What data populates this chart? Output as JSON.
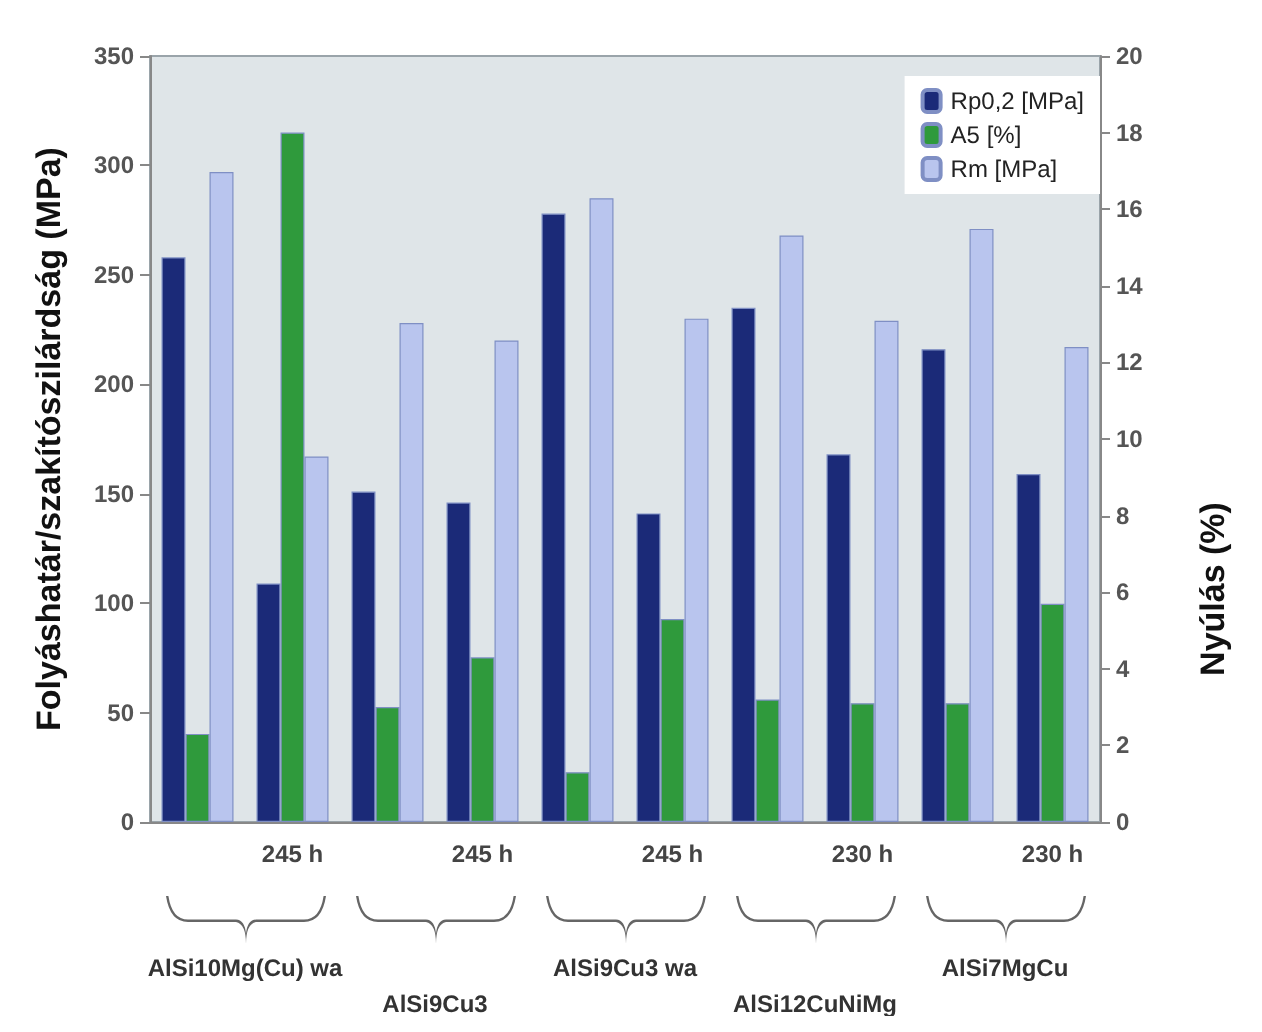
{
  "chart_data": {
    "type": "bar",
    "ylabel": "Folyáshatár/szakítószilárdság (MPa)",
    "y2label": "Nyúlás (%)",
    "categories": [
      null,
      "245 h",
      null,
      "245 h",
      null,
      "245 h",
      null,
      "230 h",
      null,
      "230 h"
    ],
    "series": [
      {
        "name": "Rp0,2 [MPa]",
        "color": "#1b2a78",
        "values": [
          258,
          109,
          151,
          146,
          278,
          141,
          235,
          168,
          216,
          159
        ]
      },
      {
        "name": "A5 [%]",
        "color": "#2f9a3c",
        "axis": "y2",
        "values": [
          2.3,
          18.0,
          3.0,
          4.3,
          1.3,
          5.3,
          3.2,
          3.1,
          3.1,
          5.7
        ]
      },
      {
        "name": "Rm [MPa]",
        "color": "#b9c5ee",
        "values": [
          297,
          167,
          228,
          220,
          285,
          230,
          268,
          229,
          271,
          217
        ]
      }
    ],
    "ylim": [
      0,
      350
    ],
    "yticks": [
      0,
      50,
      100,
      150,
      200,
      250,
      300,
      350
    ],
    "y2lim": [
      0,
      20
    ],
    "y2ticks": [
      0,
      2,
      4,
      6,
      8,
      10,
      12,
      14,
      16,
      18,
      20
    ],
    "grid": false,
    "legend": "top right",
    "annotations": [
      "AlSi10Mg(Cu) wa",
      "AlSi9Cu3",
      "AlSi9Cu3 wa",
      "AlSi12CuNiMg",
      "AlSi7MgCu"
    ]
  }
}
